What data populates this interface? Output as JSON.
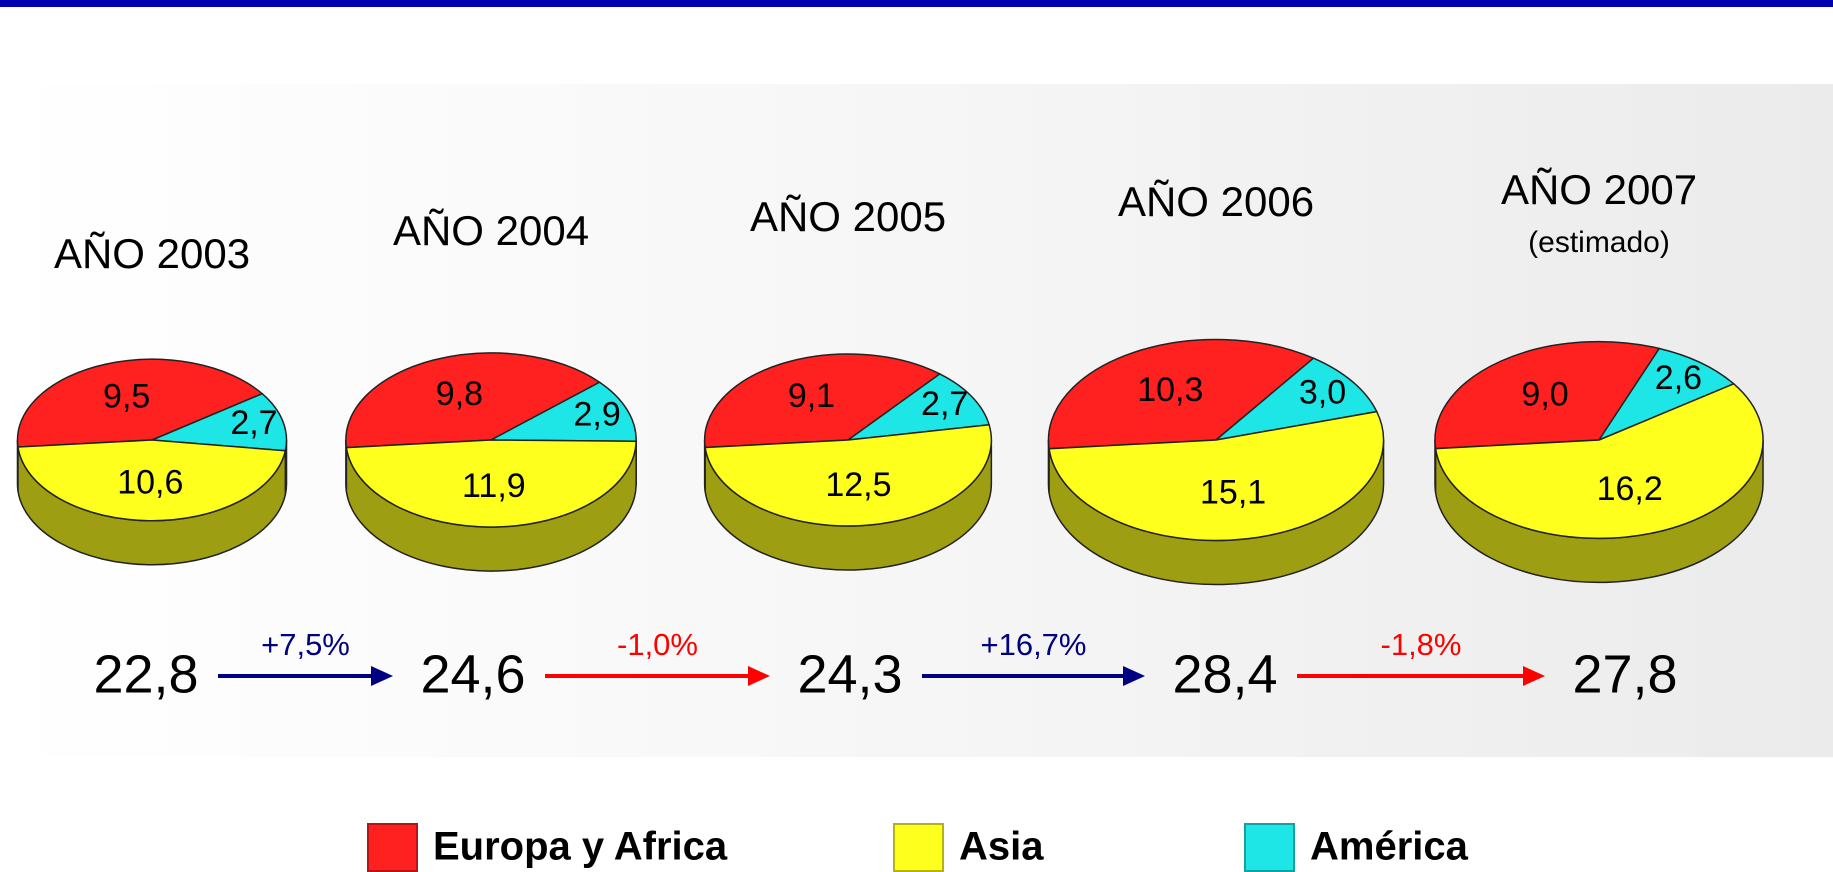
{
  "legend": [
    {
      "name": "Europa y Africa",
      "color": "#ff2020"
    },
    {
      "name": "Asia",
      "color": "#ffff1e"
    },
    {
      "name": "América",
      "color": "#1ee6e6"
    }
  ],
  "chart_data": [
    {
      "type": "pie",
      "title": "AÑO 2003",
      "values": [
        9.5,
        10.6,
        2.7
      ],
      "value_labels": [
        "9,5",
        "10,6",
        "2,7"
      ],
      "total": 22.8,
      "total_label": "22,8"
    },
    {
      "type": "pie",
      "title": "AÑO 2004",
      "values": [
        9.8,
        11.9,
        2.9
      ],
      "value_labels": [
        "9,8",
        "11,9",
        "2,9"
      ],
      "total": 24.6,
      "total_label": "24,6"
    },
    {
      "type": "pie",
      "title": "AÑO 2005",
      "values": [
        9.1,
        12.5,
        2.7
      ],
      "value_labels": [
        "9,1",
        "12,5",
        "2,7"
      ],
      "total": 24.3,
      "total_label": "24,3"
    },
    {
      "type": "pie",
      "title": "AÑO 2006",
      "values": [
        10.3,
        15.1,
        3.0
      ],
      "value_labels": [
        "10,3",
        "15,1",
        "3,0"
      ],
      "total": 28.4,
      "total_label": "28,4"
    },
    {
      "type": "pie",
      "title": "AÑO 2007",
      "subtitle": "(estimado)",
      "values": [
        9.0,
        16.2,
        2.6
      ],
      "value_labels": [
        "9,0",
        "16,2",
        "2,6"
      ],
      "total": 27.8,
      "total_label": "27,8"
    }
  ],
  "changes": [
    {
      "value": 7.5,
      "label": "+7,5%",
      "color": "#000080"
    },
    {
      "value": -1.0,
      "label": "-1,0%",
      "color": "#ff0000"
    },
    {
      "value": 16.7,
      "label": "+16,7%",
      "color": "#000080"
    },
    {
      "value": -1.8,
      "label": "-1,8%",
      "color": "#ff0000"
    }
  ]
}
